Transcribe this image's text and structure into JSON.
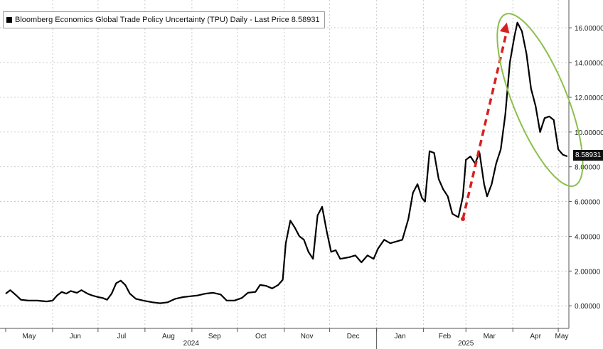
{
  "chart_data": {
    "type": "line",
    "title": "Bloomberg Economics Global Trade Policy Uncertainty (TPU) Daily - Last Price 8.58931",
    "last_price_label": "8.58931",
    "y_ticks": [
      "0.00000",
      "2.00000",
      "4.00000",
      "6.00000",
      "8.00000",
      "10.00000",
      "12.00000",
      "14.00000",
      "16.00000"
    ],
    "ylim": [
      -1.3,
      17.6
    ],
    "x_ticks": [
      "May",
      "Jun",
      "Jul",
      "Aug",
      "Sep",
      "Oct",
      "Nov",
      "Dec",
      "Jan",
      "Feb",
      "Mar",
      "Apr",
      "May"
    ],
    "x_years": [
      "2024",
      "2025"
    ],
    "x_range": [
      "2024-05-01",
      "2025-05-08"
    ],
    "grid": true,
    "series": [
      {
        "name": "Bloomberg Economics Global Trade Policy Uncertainty (TPU) Daily",
        "color": "#000000",
        "points": [
          [
            "2024-05-01",
            0.7
          ],
          [
            "2024-05-04",
            0.9
          ],
          [
            "2024-05-08",
            0.6
          ],
          [
            "2024-05-11",
            0.35
          ],
          [
            "2024-05-16",
            0.3
          ],
          [
            "2024-05-22",
            0.3
          ],
          [
            "2024-05-28",
            0.25
          ],
          [
            "2024-06-01",
            0.3
          ],
          [
            "2024-06-04",
            0.6
          ],
          [
            "2024-06-07",
            0.8
          ],
          [
            "2024-06-10",
            0.7
          ],
          [
            "2024-06-13",
            0.85
          ],
          [
            "2024-06-17",
            0.75
          ],
          [
            "2024-06-20",
            0.9
          ],
          [
            "2024-06-24",
            0.7
          ],
          [
            "2024-06-27",
            0.6
          ],
          [
            "2024-07-01",
            0.5
          ],
          [
            "2024-07-04",
            0.45
          ],
          [
            "2024-07-07",
            0.35
          ],
          [
            "2024-07-10",
            0.7
          ],
          [
            "2024-07-13",
            1.3
          ],
          [
            "2024-07-16",
            1.45
          ],
          [
            "2024-07-19",
            1.2
          ],
          [
            "2024-07-22",
            0.7
          ],
          [
            "2024-07-26",
            0.4
          ],
          [
            "2024-07-31",
            0.3
          ],
          [
            "2024-08-06",
            0.2
          ],
          [
            "2024-08-11",
            0.15
          ],
          [
            "2024-08-16",
            0.2
          ],
          [
            "2024-08-21",
            0.4
          ],
          [
            "2024-08-26",
            0.5
          ],
          [
            "2024-08-31",
            0.55
          ],
          [
            "2024-09-05",
            0.6
          ],
          [
            "2024-09-10",
            0.7
          ],
          [
            "2024-09-15",
            0.75
          ],
          [
            "2024-09-20",
            0.65
          ],
          [
            "2024-09-24",
            0.3
          ],
          [
            "2024-09-29",
            0.3
          ],
          [
            "2024-10-04",
            0.45
          ],
          [
            "2024-10-08",
            0.75
          ],
          [
            "2024-10-13",
            0.8
          ],
          [
            "2024-10-16",
            1.2
          ],
          [
            "2024-10-20",
            1.15
          ],
          [
            "2024-10-24",
            1.0
          ],
          [
            "2024-10-28",
            1.2
          ],
          [
            "2024-10-31",
            1.5
          ],
          [
            "2024-11-02",
            3.6
          ],
          [
            "2024-11-05",
            4.9
          ],
          [
            "2024-11-08",
            4.5
          ],
          [
            "2024-11-11",
            4.0
          ],
          [
            "2024-11-14",
            3.8
          ],
          [
            "2024-11-17",
            3.1
          ],
          [
            "2024-11-20",
            2.7
          ],
          [
            "2024-11-23",
            5.2
          ],
          [
            "2024-11-26",
            5.7
          ],
          [
            "2024-11-29",
            4.3
          ],
          [
            "2024-12-02",
            3.1
          ],
          [
            "2024-12-05",
            3.2
          ],
          [
            "2024-12-08",
            2.7
          ],
          [
            "2024-12-14",
            2.8
          ],
          [
            "2024-12-18",
            2.9
          ],
          [
            "2024-12-22",
            2.5
          ],
          [
            "2024-12-26",
            2.9
          ],
          [
            "2024-12-30",
            2.7
          ],
          [
            "2025-01-02",
            3.3
          ],
          [
            "2025-01-06",
            3.8
          ],
          [
            "2025-01-10",
            3.6
          ],
          [
            "2025-01-14",
            3.7
          ],
          [
            "2025-01-18",
            3.8
          ],
          [
            "2025-01-22",
            5.0
          ],
          [
            "2025-01-25",
            6.5
          ],
          [
            "2025-01-28",
            7.0
          ],
          [
            "2025-01-31",
            6.2
          ],
          [
            "2025-02-02",
            6.0
          ],
          [
            "2025-02-05",
            8.9
          ],
          [
            "2025-02-08",
            8.8
          ],
          [
            "2025-02-11",
            7.3
          ],
          [
            "2025-02-14",
            6.7
          ],
          [
            "2025-02-17",
            6.3
          ],
          [
            "2025-02-20",
            5.3
          ],
          [
            "2025-02-24",
            5.1
          ],
          [
            "2025-02-27",
            6.3
          ],
          [
            "2025-03-01",
            8.4
          ],
          [
            "2025-03-04",
            8.6
          ],
          [
            "2025-03-07",
            8.2
          ],
          [
            "2025-03-10",
            8.8
          ],
          [
            "2025-03-13",
            7.0
          ],
          [
            "2025-03-15",
            6.3
          ],
          [
            "2025-03-18",
            7.0
          ],
          [
            "2025-03-21",
            8.2
          ],
          [
            "2025-03-24",
            9.0
          ],
          [
            "2025-03-27",
            11.0
          ],
          [
            "2025-03-30",
            14.0
          ],
          [
            "2025-04-02",
            15.5
          ],
          [
            "2025-04-04",
            16.3
          ],
          [
            "2025-04-07",
            15.8
          ],
          [
            "2025-04-10",
            14.5
          ],
          [
            "2025-04-13",
            12.5
          ],
          [
            "2025-04-16",
            11.5
          ],
          [
            "2025-04-19",
            10.0
          ],
          [
            "2025-04-22",
            10.8
          ],
          [
            "2025-04-25",
            10.9
          ],
          [
            "2025-04-28",
            10.7
          ],
          [
            "2025-05-01",
            9.0
          ],
          [
            "2025-05-04",
            8.7
          ],
          [
            "2025-05-07",
            8.6
          ]
        ]
      }
    ],
    "annotations": [
      {
        "type": "dashed-arrow",
        "color": "#d62020",
        "from": [
          "2025-02-27",
          5.0
        ],
        "to": [
          "2025-03-28",
          16.3
        ]
      },
      {
        "type": "ellipse-outline",
        "color": "#8cc04a",
        "around": [
          "2025-03-30",
          "2025-05-07"
        ]
      }
    ]
  }
}
